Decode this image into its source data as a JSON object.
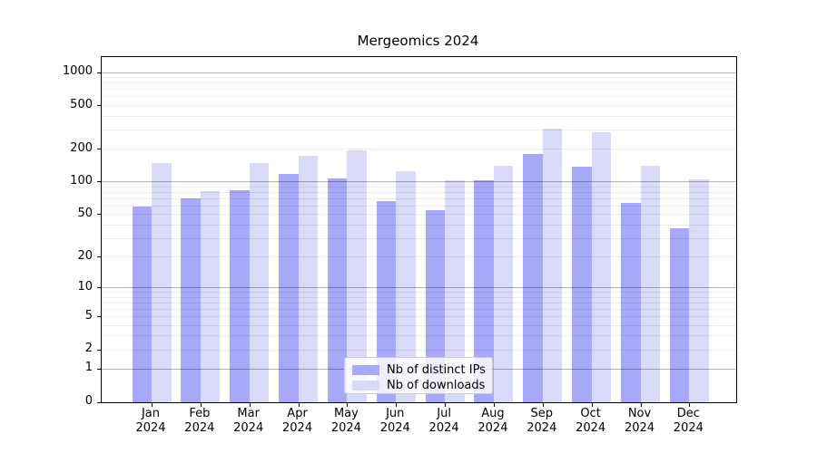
{
  "chart_data": {
    "type": "bar",
    "title": "Mergeomics 2024",
    "categories": [
      "Jan 2024",
      "Feb 2024",
      "Mar 2024",
      "Apr 2024",
      "May 2024",
      "Jun 2024",
      "Jul 2024",
      "Aug 2024",
      "Sep 2024",
      "Oct 2024",
      "Nov 2024",
      "Dec 2024"
    ],
    "series": [
      {
        "name": "Nb of distinct IPs",
        "color": "#a8a8f8",
        "values": [
          59,
          71,
          84,
          118,
          107,
          67,
          55,
          104,
          179,
          137,
          64,
          37
        ]
      },
      {
        "name": "Nb of downloads",
        "color": "#d9d9f8",
        "values": [
          148,
          82,
          149,
          174,
          195,
          126,
          103,
          140,
          310,
          285,
          142,
          106
        ]
      }
    ],
    "y_axis": {
      "scale": "log1p",
      "tick_labels": [
        0,
        1,
        2,
        5,
        10,
        20,
        50,
        100,
        200,
        500,
        1000
      ],
      "major_gridlines": [
        1,
        10,
        100,
        1000
      ],
      "top_value": 1383,
      "ylim": [
        0,
        1383
      ]
    },
    "x_axis": {
      "label_line_2": "2024"
    },
    "legend": {
      "position": "lower center",
      "frame_alpha": 0.8
    },
    "grid": "on",
    "colors": {
      "major_grid": "#b3b3b3",
      "minor_grid": "#ececec",
      "axis": "#000000",
      "background": "#ffffff"
    }
  }
}
